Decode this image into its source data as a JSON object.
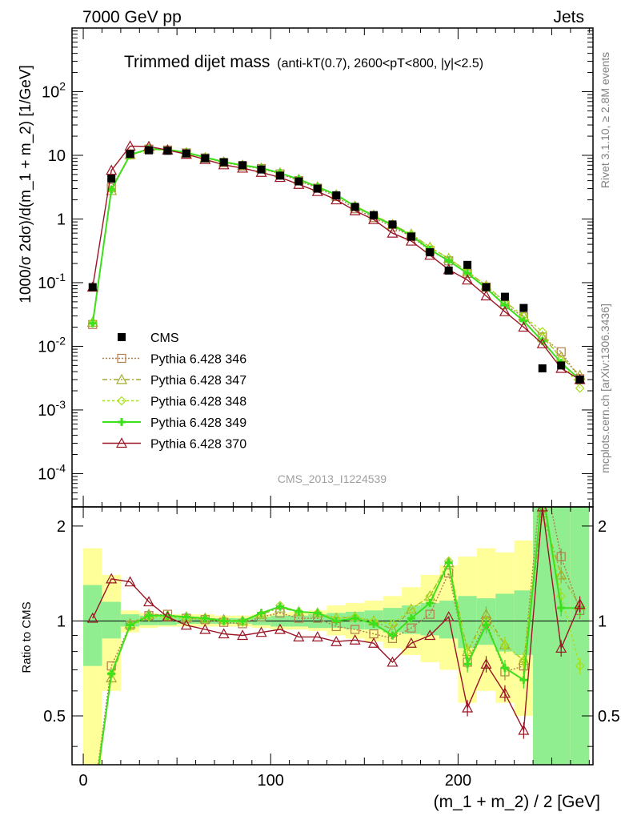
{
  "header": {
    "left_label": "7000 GeV pp",
    "right_label": "Jets"
  },
  "side_labels": {
    "rivet": "Rivet 3.1.10, ≥ 2.8M events",
    "mcplots": "mcplots.cern.ch [arXiv:1306.3436]"
  },
  "chart_data": {
    "type": "line",
    "title": "Trimmed dijet mass",
    "title_detail": "(anti-kT(0.7), 2600<pT<800, |y|<2.5)",
    "analysis_id": "CMS_2013_I1224539",
    "xlabel": "(m_1 + m_2) / 2 [GeV]",
    "ylabel_main": "1000/σ 2dσ)/d(m_1 + m_2) [1/GeV]",
    "ylabel_ratio": "Ratio to CMS",
    "xlim": [
      -6,
      272
    ],
    "ylim_main": [
      3e-05,
      1000
    ],
    "yscale_main": "log",
    "ylim_ratio": [
      0.35,
      2.3
    ],
    "yscale_ratio": "log",
    "x_ticks": [
      0,
      100,
      200
    ],
    "y_ticks_main": [
      "10^-4",
      "10^-3",
      "10^-2",
      "10^-1",
      "1",
      "10",
      "10^2"
    ],
    "y_ticks_ratio": [
      0.5,
      1,
      2
    ],
    "legend_position": "lower-left",
    "x": [
      5,
      15,
      25,
      35,
      45,
      55,
      65,
      75,
      85,
      95,
      105,
      115,
      125,
      135,
      145,
      155,
      165,
      175,
      185,
      195,
      205,
      215,
      225,
      235,
      245,
      255,
      265
    ],
    "data": {
      "name": "CMS",
      "values": [
        0.085,
        4.3,
        10.5,
        12.0,
        11.8,
        10.7,
        9.0,
        7.8,
        7.0,
        6.0,
        4.8,
        3.9,
        3.0,
        2.35,
        1.55,
        1.15,
        0.82,
        0.53,
        0.3,
        0.155,
        0.19,
        0.085,
        0.06,
        0.04,
        0.0045,
        0.005,
        0.003
      ],
      "err_low": [
        0.003,
        0.2,
        0.3,
        0.3,
        0.3,
        0.3,
        0.25,
        0.2,
        0.2,
        0.15,
        0.12,
        0.1,
        0.08,
        0.06,
        0.05,
        0.04,
        0.03,
        0.02,
        0.015,
        0.01,
        0.012,
        0.006,
        0.005,
        0.004,
        0.0008,
        0.001,
        0.0007
      ]
    },
    "series": [
      {
        "name": "Pythia 6.428 346",
        "color": "#b07d4c",
        "dash": "2,2",
        "marker": "square",
        "values": [
          0.022,
          3.1,
          10.2,
          12.5,
          12.1,
          10.9,
          9.1,
          7.7,
          6.8,
          6.2,
          5.1,
          4.0,
          3.05,
          2.25,
          1.45,
          1.05,
          0.75,
          0.53,
          0.32,
          0.22,
          0.14,
          0.085,
          0.045,
          0.029,
          0.014,
          0.0082,
          0.0031
        ],
        "ratio": [
          0.26,
          0.72,
          0.97,
          1.04,
          1.05,
          1.02,
          1.01,
          0.99,
          0.98,
          1.03,
          1.06,
          1.02,
          1.02,
          0.96,
          0.94,
          0.91,
          0.88,
          0.95,
          1.05,
          1.42,
          0.74,
          1.0,
          0.69,
          0.72,
          3.1,
          1.6,
          1.08
        ]
      },
      {
        "name": "Pythia 6.428 347",
        "color": "#a4ab2c",
        "dash": "6,3,2,3",
        "marker": "triangle",
        "values": [
          0.024,
          2.8,
          10.3,
          12.6,
          12.2,
          11.0,
          9.2,
          7.9,
          7.0,
          6.3,
          5.3,
          4.2,
          3.2,
          2.4,
          1.6,
          1.15,
          0.82,
          0.58,
          0.36,
          0.24,
          0.15,
          0.09,
          0.05,
          0.03,
          0.014,
          0.0068,
          0.0035
        ],
        "ratio": [
          0.26,
          0.66,
          0.98,
          1.05,
          1.04,
          1.03,
          1.02,
          1.01,
          1.0,
          1.05,
          1.1,
          1.07,
          1.06,
          1.02,
          1.03,
          1.0,
          0.94,
          1.09,
          1.2,
          1.53,
          0.8,
          1.05,
          0.84,
          0.75,
          2.2,
          1.4,
          1.12
        ]
      },
      {
        "name": "Pythia 6.428 348",
        "color": "#a6e01c",
        "dash": "3,3",
        "marker": "diamond",
        "values": [
          0.024,
          2.9,
          10.0,
          12.4,
          12.0,
          10.9,
          9.1,
          7.8,
          6.9,
          6.3,
          5.3,
          4.2,
          3.2,
          2.4,
          1.6,
          1.15,
          0.82,
          0.58,
          0.36,
          0.24,
          0.15,
          0.09,
          0.05,
          0.03,
          0.017,
          0.006,
          0.0022
        ],
        "ratio": [
          0.25,
          0.68,
          0.96,
          1.03,
          1.03,
          1.02,
          1.01,
          1.0,
          0.99,
          1.05,
          1.12,
          1.07,
          1.06,
          1.02,
          1.03,
          1.0,
          0.98,
          1.09,
          1.2,
          1.55,
          0.8,
          1.0,
          0.84,
          0.75,
          2.5,
          1.2,
          0.72
        ]
      },
      {
        "name": "Pythia 6.428 349",
        "color": "#3ce01c",
        "dash": "",
        "marker": "plus",
        "values": [
          0.023,
          2.9,
          10.2,
          12.6,
          12.3,
          11.1,
          9.3,
          7.9,
          7.0,
          6.3,
          5.3,
          4.2,
          3.2,
          2.4,
          1.58,
          1.12,
          0.8,
          0.55,
          0.33,
          0.22,
          0.14,
          0.082,
          0.044,
          0.025,
          0.012,
          0.0055,
          0.003
        ],
        "ratio": [
          0.25,
          0.68,
          0.97,
          1.04,
          1.04,
          1.03,
          1.02,
          1.0,
          1.0,
          1.06,
          1.11,
          1.07,
          1.06,
          1.0,
          1.02,
          0.98,
          0.9,
          1.02,
          1.14,
          1.53,
          0.73,
          0.97,
          0.71,
          0.65,
          2.6,
          1.1,
          1.1
        ]
      },
      {
        "name": "Pythia 6.428 370",
        "color": "#9a1424",
        "dash": "",
        "marker": "triangle",
        "values": [
          0.085,
          5.8,
          14.0,
          13.8,
          12.1,
          10.4,
          8.6,
          7.1,
          6.3,
          5.4,
          4.5,
          3.5,
          2.7,
          2.0,
          1.35,
          0.98,
          0.6,
          0.45,
          0.27,
          0.16,
          0.11,
          0.062,
          0.035,
          0.02,
          0.011,
          0.0045,
          0.003
        ],
        "ratio": [
          1.02,
          1.36,
          1.33,
          1.15,
          1.03,
          0.97,
          0.94,
          0.91,
          0.9,
          0.92,
          0.94,
          0.89,
          0.89,
          0.86,
          0.87,
          0.85,
          0.74,
          0.85,
          0.9,
          1.03,
          0.53,
          0.73,
          0.59,
          0.45,
          2.3,
          0.82,
          1.13
        ]
      }
    ],
    "ratio_bands": {
      "inner_color": "#90ee90",
      "outer_color": "#ffff99",
      "inner": [
        [
          0.72,
          1.3
        ],
        [
          0.88,
          1.15
        ],
        [
          0.96,
          1.05
        ],
        [
          0.97,
          1.04
        ],
        [
          0.97,
          1.03
        ],
        [
          0.98,
          1.03
        ],
        [
          0.98,
          1.02
        ],
        [
          0.98,
          1.02
        ],
        [
          0.98,
          1.02
        ],
        [
          0.97,
          1.03
        ],
        [
          0.96,
          1.04
        ],
        [
          0.96,
          1.04
        ],
        [
          0.95,
          1.05
        ],
        [
          0.95,
          1.06
        ],
        [
          0.94,
          1.07
        ],
        [
          0.94,
          1.08
        ],
        [
          0.92,
          1.1
        ],
        [
          0.91,
          1.12
        ],
        [
          0.9,
          1.14
        ],
        [
          0.88,
          1.16
        ],
        [
          0.82,
          1.2
        ],
        [
          0.84,
          1.18
        ],
        [
          0.8,
          1.22
        ],
        [
          0.78,
          1.25
        ],
        [
          0.3,
          2.6
        ],
        [
          0.3,
          2.6
        ],
        [
          0.3,
          2.6
        ]
      ],
      "outer": [
        [
          0.35,
          1.7
        ],
        [
          0.6,
          1.4
        ],
        [
          0.92,
          1.08
        ],
        [
          0.95,
          1.06
        ],
        [
          0.96,
          1.05
        ],
        [
          0.96,
          1.05
        ],
        [
          0.96,
          1.05
        ],
        [
          0.96,
          1.04
        ],
        [
          0.96,
          1.04
        ],
        [
          0.95,
          1.05
        ],
        [
          0.94,
          1.06
        ],
        [
          0.94,
          1.07
        ],
        [
          0.93,
          1.08
        ],
        [
          0.9,
          1.12
        ],
        [
          0.88,
          1.14
        ],
        [
          0.86,
          1.16
        ],
        [
          0.82,
          1.2
        ],
        [
          0.78,
          1.28
        ],
        [
          0.74,
          1.4
        ],
        [
          0.7,
          1.5
        ],
        [
          0.55,
          1.6
        ],
        [
          0.6,
          1.7
        ],
        [
          0.55,
          1.65
        ],
        [
          0.5,
          1.8
        ],
        [
          0.3,
          2.6
        ],
        [
          0.3,
          2.6
        ],
        [
          0.3,
          2.6
        ]
      ]
    }
  }
}
